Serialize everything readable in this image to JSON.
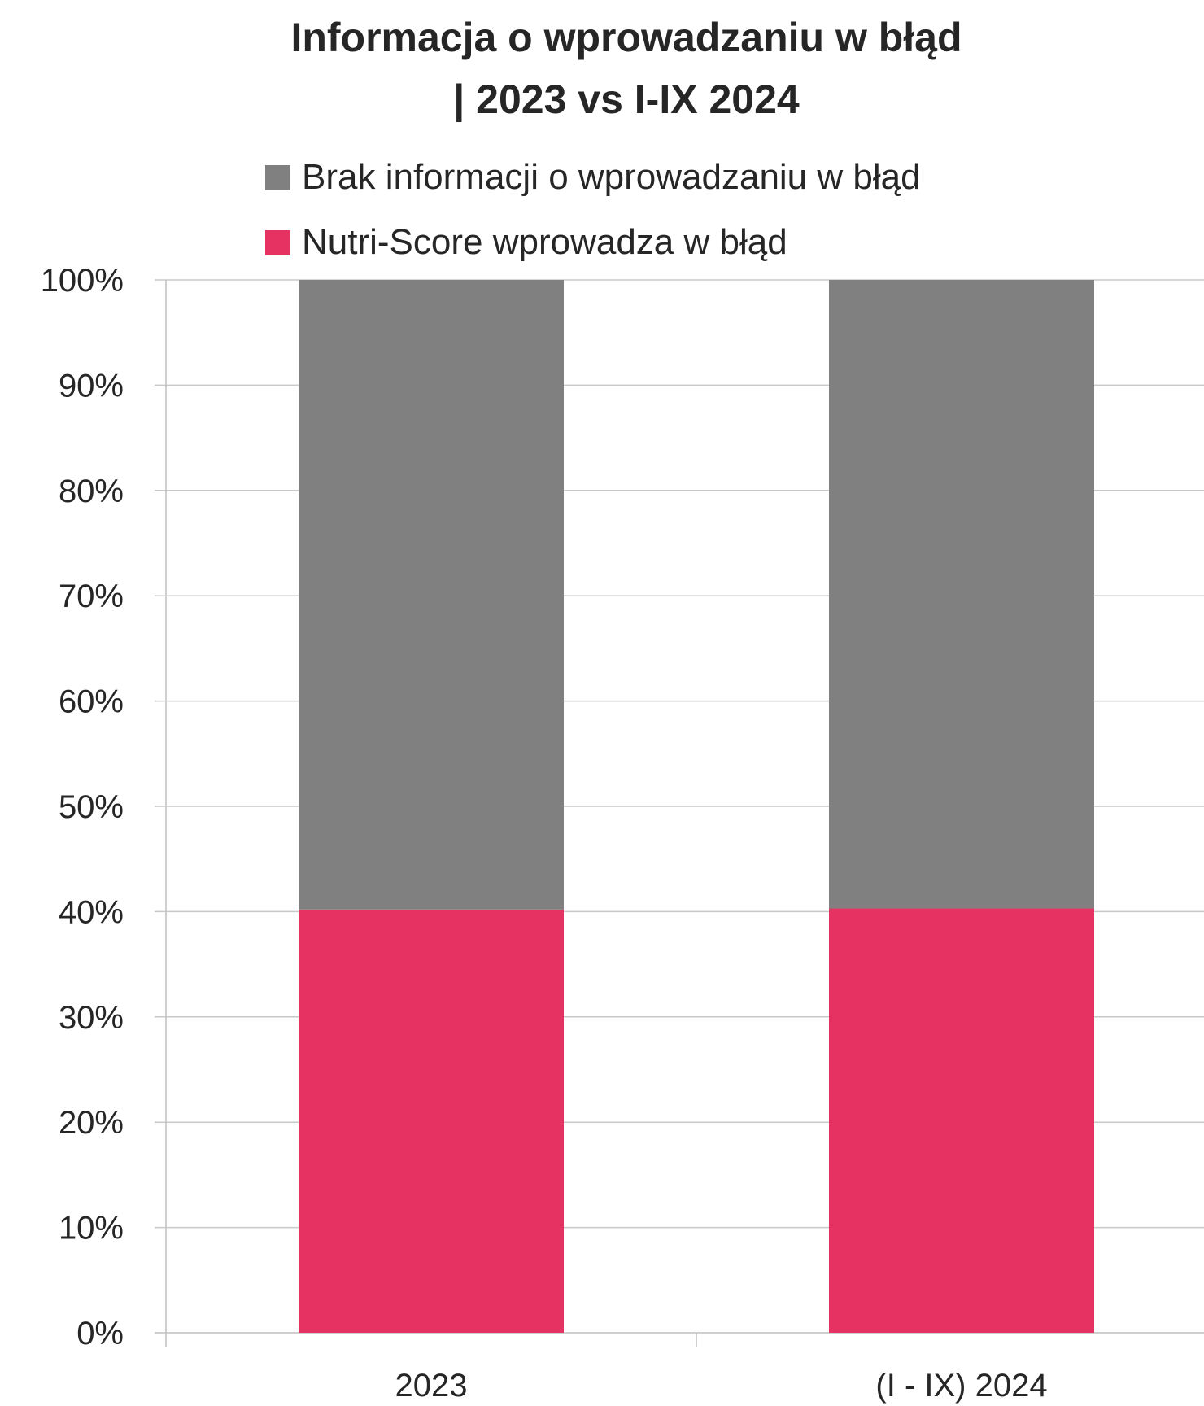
{
  "chart_data": {
    "type": "bar",
    "stacked": true,
    "title": [
      "Informacja o wprowadzaniu w błąd",
      "| 2023 vs I-IX 2024"
    ],
    "categories": [
      "2023",
      "(I - IX) 2024"
    ],
    "series": [
      {
        "name": "Nutri-Score wprowadza w błąd",
        "color": "#e53262",
        "values": [
          40.2,
          40.3
        ]
      },
      {
        "name": "Brak informacji o wprowadzaniu w błąd",
        "color": "#808080",
        "values": [
          59.8,
          59.7
        ]
      }
    ],
    "ylim": [
      0,
      100
    ],
    "yticks": [
      "0%",
      "10%",
      "20%",
      "30%",
      "40%",
      "50%",
      "60%",
      "70%",
      "80%",
      "90%",
      "100%"
    ],
    "grid": true,
    "legend_position": "top",
    "legend_order": [
      1,
      0
    ]
  }
}
